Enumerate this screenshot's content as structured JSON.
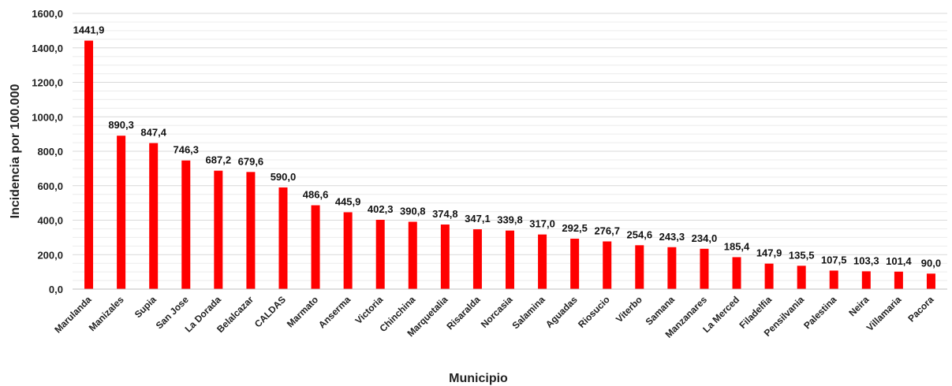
{
  "chart_data": {
    "type": "bar",
    "title": "",
    "xlabel": "Municipio",
    "ylabel": "Incidencia por 100.000",
    "ylim": [
      0,
      1600
    ],
    "y_ticks": [
      "0,0",
      "200,0",
      "400,0",
      "600,0",
      "800,0",
      "1000,0",
      "1200,0",
      "1400,0",
      "1600,0"
    ],
    "grid": true,
    "legend": "none",
    "categories": [
      "Marulanda",
      "Manizales",
      "Supia",
      "San Jose",
      "La Dorada",
      "Belalcazar",
      "CALDAS",
      "Marmato",
      "Anserma",
      "Victoria",
      "Chinchina",
      "Marquetalia",
      "Risaralda",
      "Norcasia",
      "Salamina",
      "Aguadas",
      "Riosucio",
      "Viterbo",
      "Samana",
      "Manzanares",
      "La Merced",
      "Filadelfia",
      "Pensilvania",
      "Palestina",
      "Neira",
      "Villamaria",
      "Pacora"
    ],
    "values": [
      1441.9,
      890.3,
      847.4,
      746.3,
      687.2,
      679.6,
      590.0,
      486.6,
      445.9,
      402.3,
      390.8,
      374.8,
      347.1,
      339.8,
      317.0,
      292.5,
      276.7,
      254.6,
      243.3,
      234.0,
      185.4,
      147.9,
      135.5,
      107.5,
      103.3,
      101.4,
      90.0
    ],
    "data_labels": [
      "1441,9",
      "890,3",
      "847,4",
      "746,3",
      "687,2",
      "679,6",
      "590,0",
      "486,6",
      "445,9",
      "402,3",
      "390,8",
      "374,8",
      "347,1",
      "339,8",
      "317,0",
      "292,5",
      "276,7",
      "254,6",
      "243,3",
      "234,0",
      "185,4",
      "147,9",
      "135,5",
      "107,5",
      "103,3",
      "101,4",
      "90,0"
    ],
    "colors": {
      "bar": "#ff0000",
      "grid": "#d9d9d9",
      "axis": "#bfbfbf"
    }
  }
}
